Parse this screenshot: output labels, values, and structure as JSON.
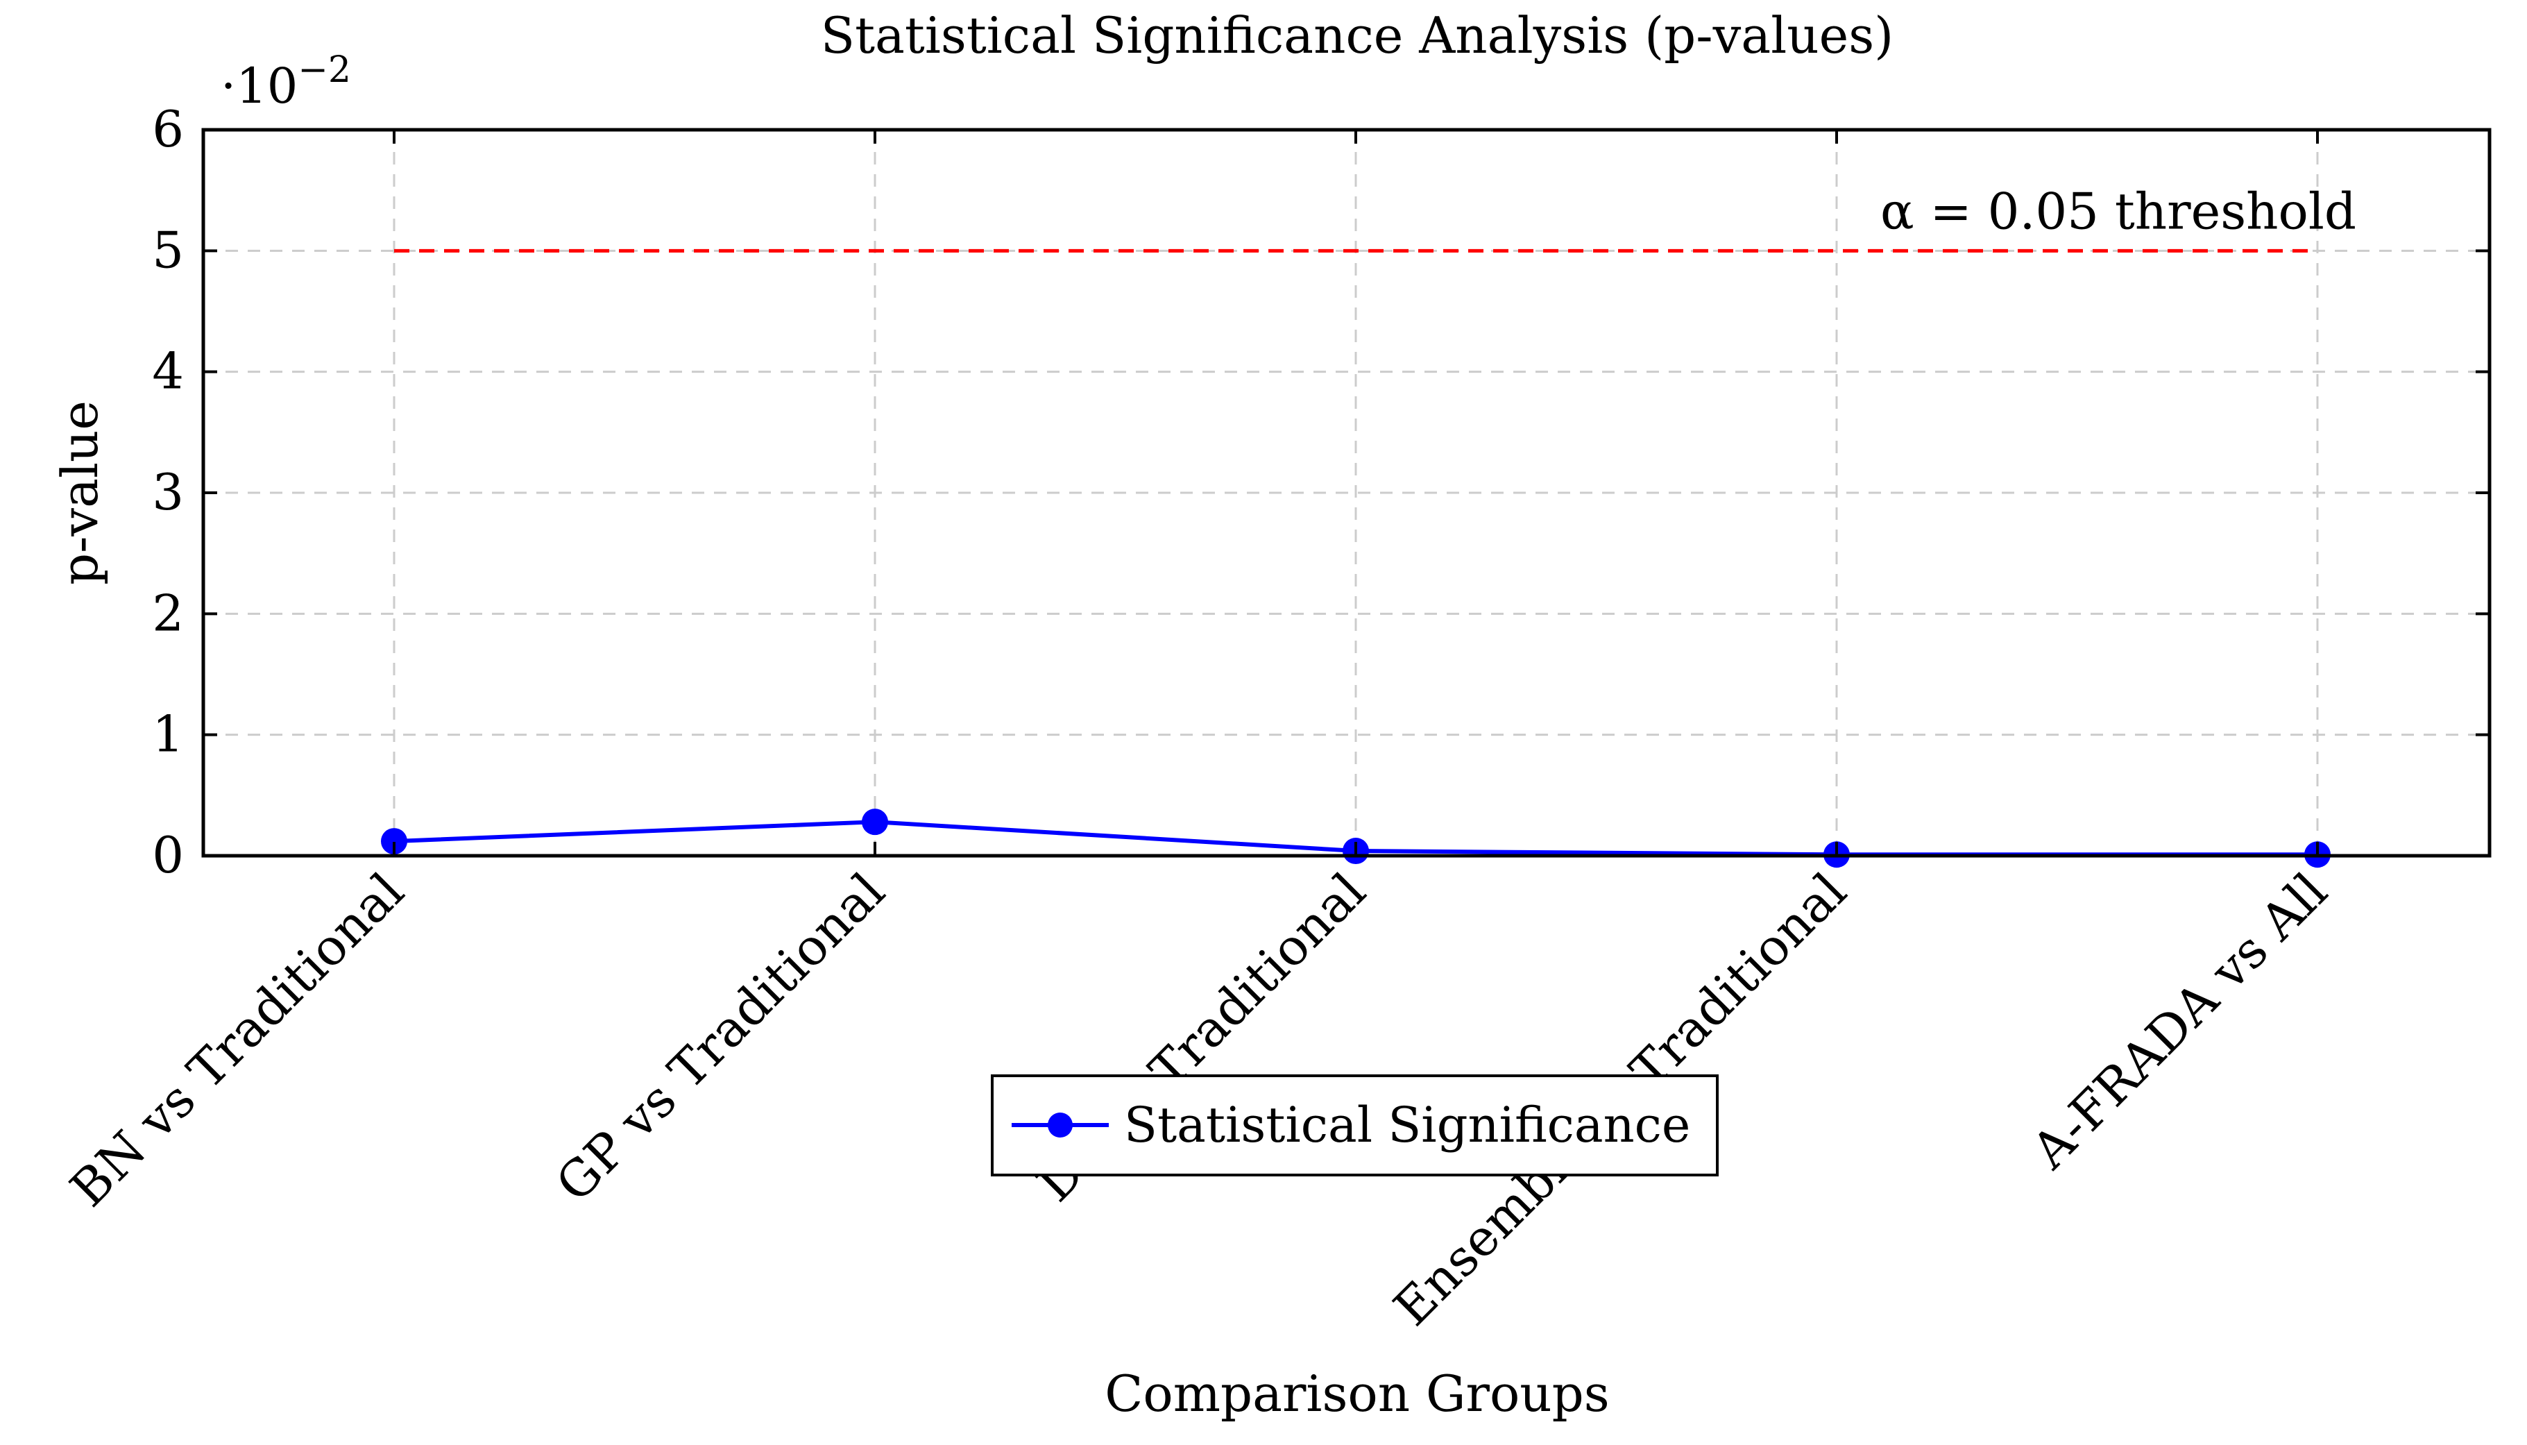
{
  "chart_data": {
    "type": "line",
    "title": "Statistical Significance Analysis (p-values)",
    "xlabel": "Comparison Groups",
    "ylabel": "p-value",
    "y_scale_label": "·10",
    "y_scale_exponent": "−2",
    "ylim": [
      0,
      0.06
    ],
    "y_ticks": [
      0,
      0.01,
      0.02,
      0.03,
      0.04,
      0.05,
      0.06
    ],
    "y_tick_labels": [
      "0",
      "1",
      "2",
      "3",
      "4",
      "5",
      "6"
    ],
    "categories": [
      "BN vs Traditional",
      "GP vs Traditional",
      "DL vs Traditional",
      "Ensemble vs Traditional",
      "A-FRADA vs All"
    ],
    "grid": true,
    "legend_position": "bottom-center",
    "series": [
      {
        "name": "Statistical Significance",
        "color": "#0000ff",
        "marker": "circle",
        "values": [
          0.0012,
          0.0028,
          0.0004,
          0.0001,
          0.0001
        ]
      }
    ],
    "threshold": {
      "value": 0.05,
      "label": "α = 0.05 threshold",
      "color": "#ff0000",
      "style": "dashed"
    }
  }
}
